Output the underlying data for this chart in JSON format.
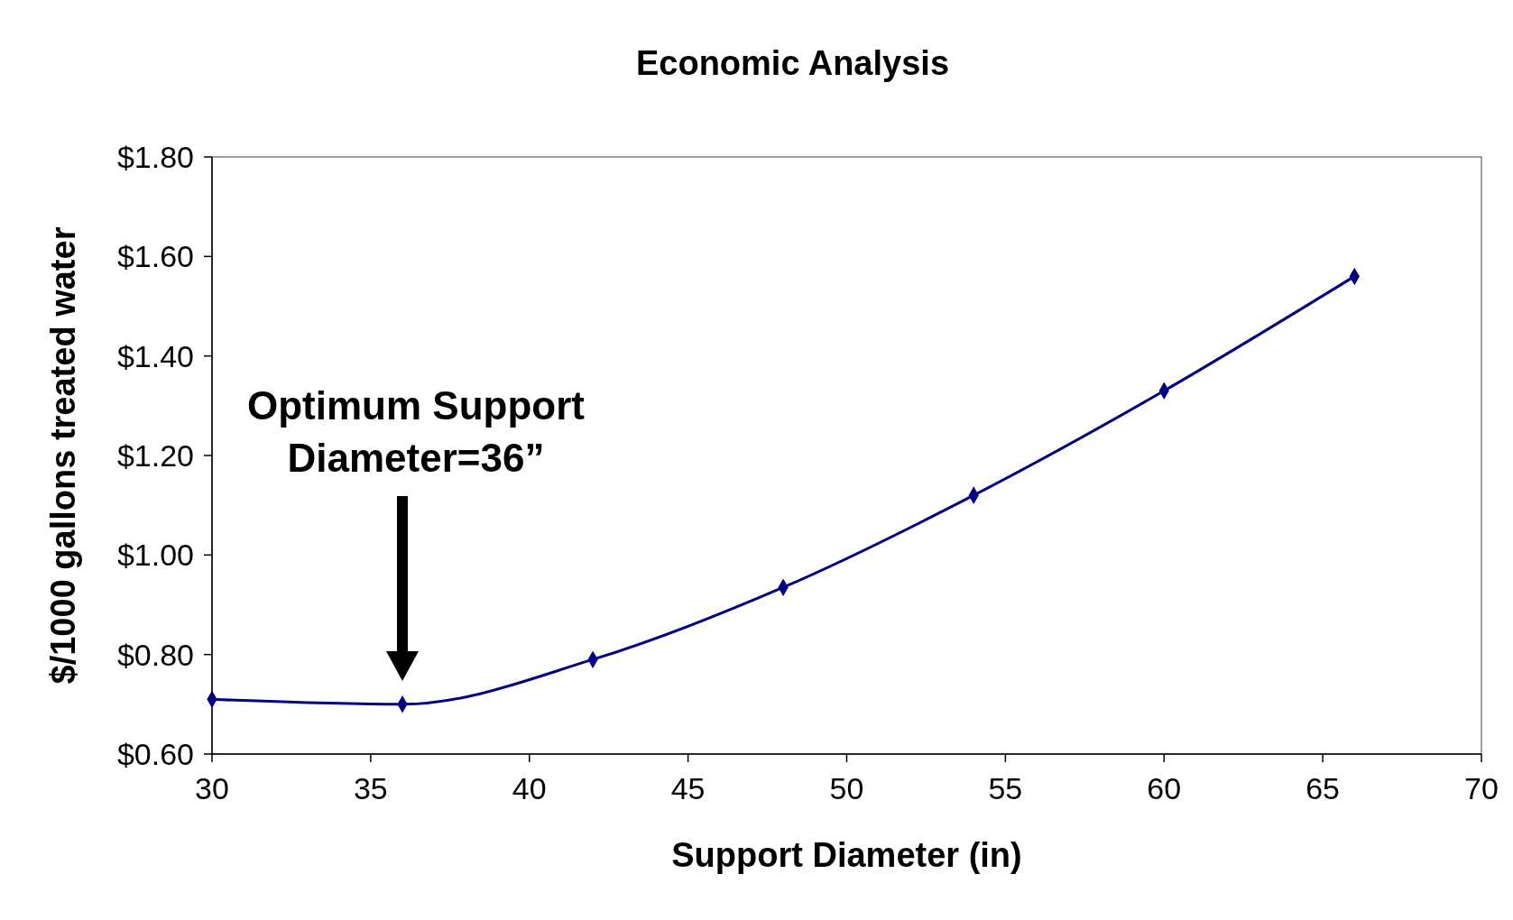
{
  "chart_data": {
    "type": "line",
    "title": "Economic Analysis",
    "xlabel": "Support Diameter (in)",
    "ylabel": "$/1000 gallons treated water",
    "x": [
      30,
      36,
      42,
      48,
      54,
      60,
      66
    ],
    "series": [
      {
        "color": "#000080",
        "values": [
          0.71,
          0.7,
          0.79,
          0.935,
          1.12,
          1.33,
          1.56
        ]
      }
    ],
    "xlim": [
      30,
      70
    ],
    "xticks": [
      30,
      35,
      40,
      45,
      50,
      55,
      60,
      65,
      70
    ],
    "ylim": [
      0.6,
      1.8
    ],
    "yticks": [
      {
        "value": 0.6,
        "label": "$0.60"
      },
      {
        "value": 0.8,
        "label": "$0.80"
      },
      {
        "value": 1.0,
        "label": "$1.00"
      },
      {
        "value": 1.2,
        "label": "$1.20"
      },
      {
        "value": 1.4,
        "label": "$1.40"
      },
      {
        "value": 1.6,
        "label": "$1.60"
      },
      {
        "value": 1.8,
        "label": "$1.80"
      }
    ],
    "grid": false,
    "marker": "diamond",
    "line_style": "solid",
    "annotations": [
      "Optimum Support\nDiameter=36”"
    ]
  }
}
